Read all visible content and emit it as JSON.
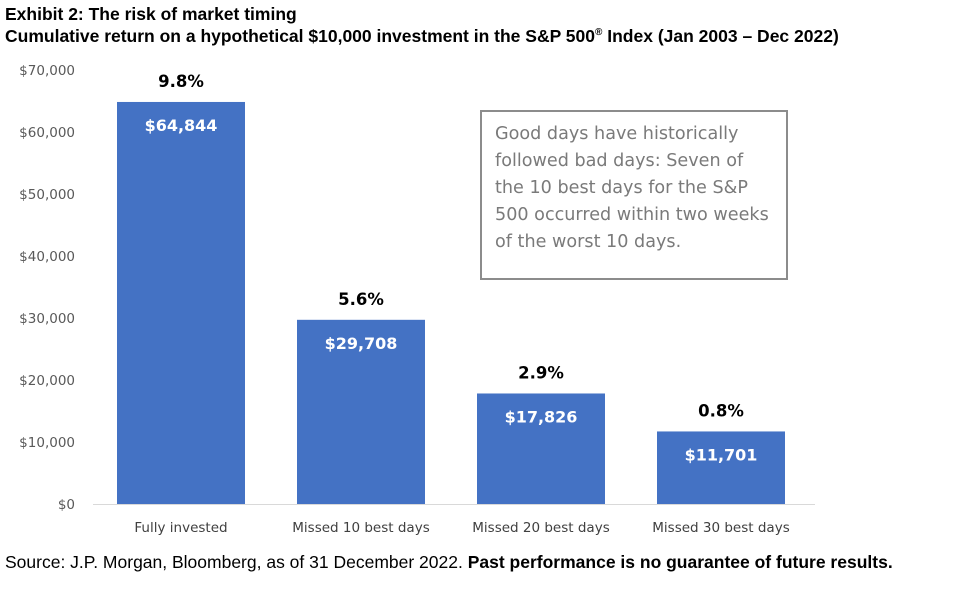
{
  "header": {
    "title": "Exhibit 2: The risk of market timing",
    "subtitle_main": "Cumulative return on a hypothetical $10,000 investment in the S&P 500",
    "subtitle_reg": "®",
    "subtitle_tail": " Index (Jan 2003 – Dec 2022)"
  },
  "note": {
    "text": "Good days have historically followed bad days: Seven of the 10 best days for the S&P 500 occurred within two weeks of the worst 10 days."
  },
  "footer": {
    "source": "Source: J.P. Morgan, Bloomberg, as of 31 December 2022. ",
    "disclaimer": "Past performance is no guarantee of future results."
  },
  "chart_data": {
    "type": "bar",
    "categories": [
      "Fully invested",
      "Missed 10 best days",
      "Missed 20 best days",
      "Missed 30 best days"
    ],
    "values": [
      64844,
      29708,
      17826,
      11701
    ],
    "value_labels": [
      "$64,844",
      "$29,708",
      "$17,826",
      "$11,701"
    ],
    "return_labels": [
      "9.8%",
      "5.6%",
      "2.9%",
      "0.8%"
    ],
    "ylim": [
      0,
      70000
    ],
    "yticks": [
      0,
      10000,
      20000,
      30000,
      40000,
      50000,
      60000,
      70000
    ],
    "ytick_labels": [
      "$0",
      "$10,000",
      "$20,000",
      "$30,000",
      "$40,000",
      "$50,000",
      "$60,000",
      "$70,000"
    ],
    "grid": false,
    "bar_color": "#4472C4",
    "title": "",
    "xlabel": "",
    "ylabel": ""
  }
}
